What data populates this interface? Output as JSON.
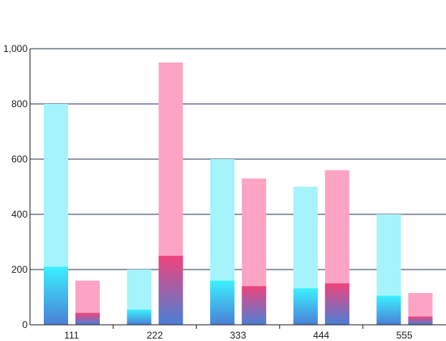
{
  "chart_data": {
    "type": "bar",
    "categories": [
      "111",
      "222",
      "333",
      "444",
      "555"
    ],
    "ylim": [
      0,
      1000
    ],
    "yticks": [
      0,
      200,
      400,
      600,
      800,
      1000
    ],
    "ytick_labels": [
      "0",
      "200",
      "400",
      "600",
      "800",
      "1,000"
    ],
    "grid": true,
    "series": [
      {
        "values": [
          800,
          200,
          600,
          500,
          400
        ],
        "inner_values": [
          210,
          55,
          160,
          132,
          105
        ],
        "color": "#a5f3fc",
        "inner_gradient": [
          "#3bf0ff",
          "#4a7fd6"
        ]
      },
      {
        "values": [
          160,
          950,
          530,
          560,
          115
        ],
        "inner_values": [
          43,
          250,
          140,
          150,
          30
        ],
        "color": "#fda4c4",
        "inner_gradient": [
          "#f0447c",
          "#4a7fd6"
        ]
      }
    ]
  }
}
